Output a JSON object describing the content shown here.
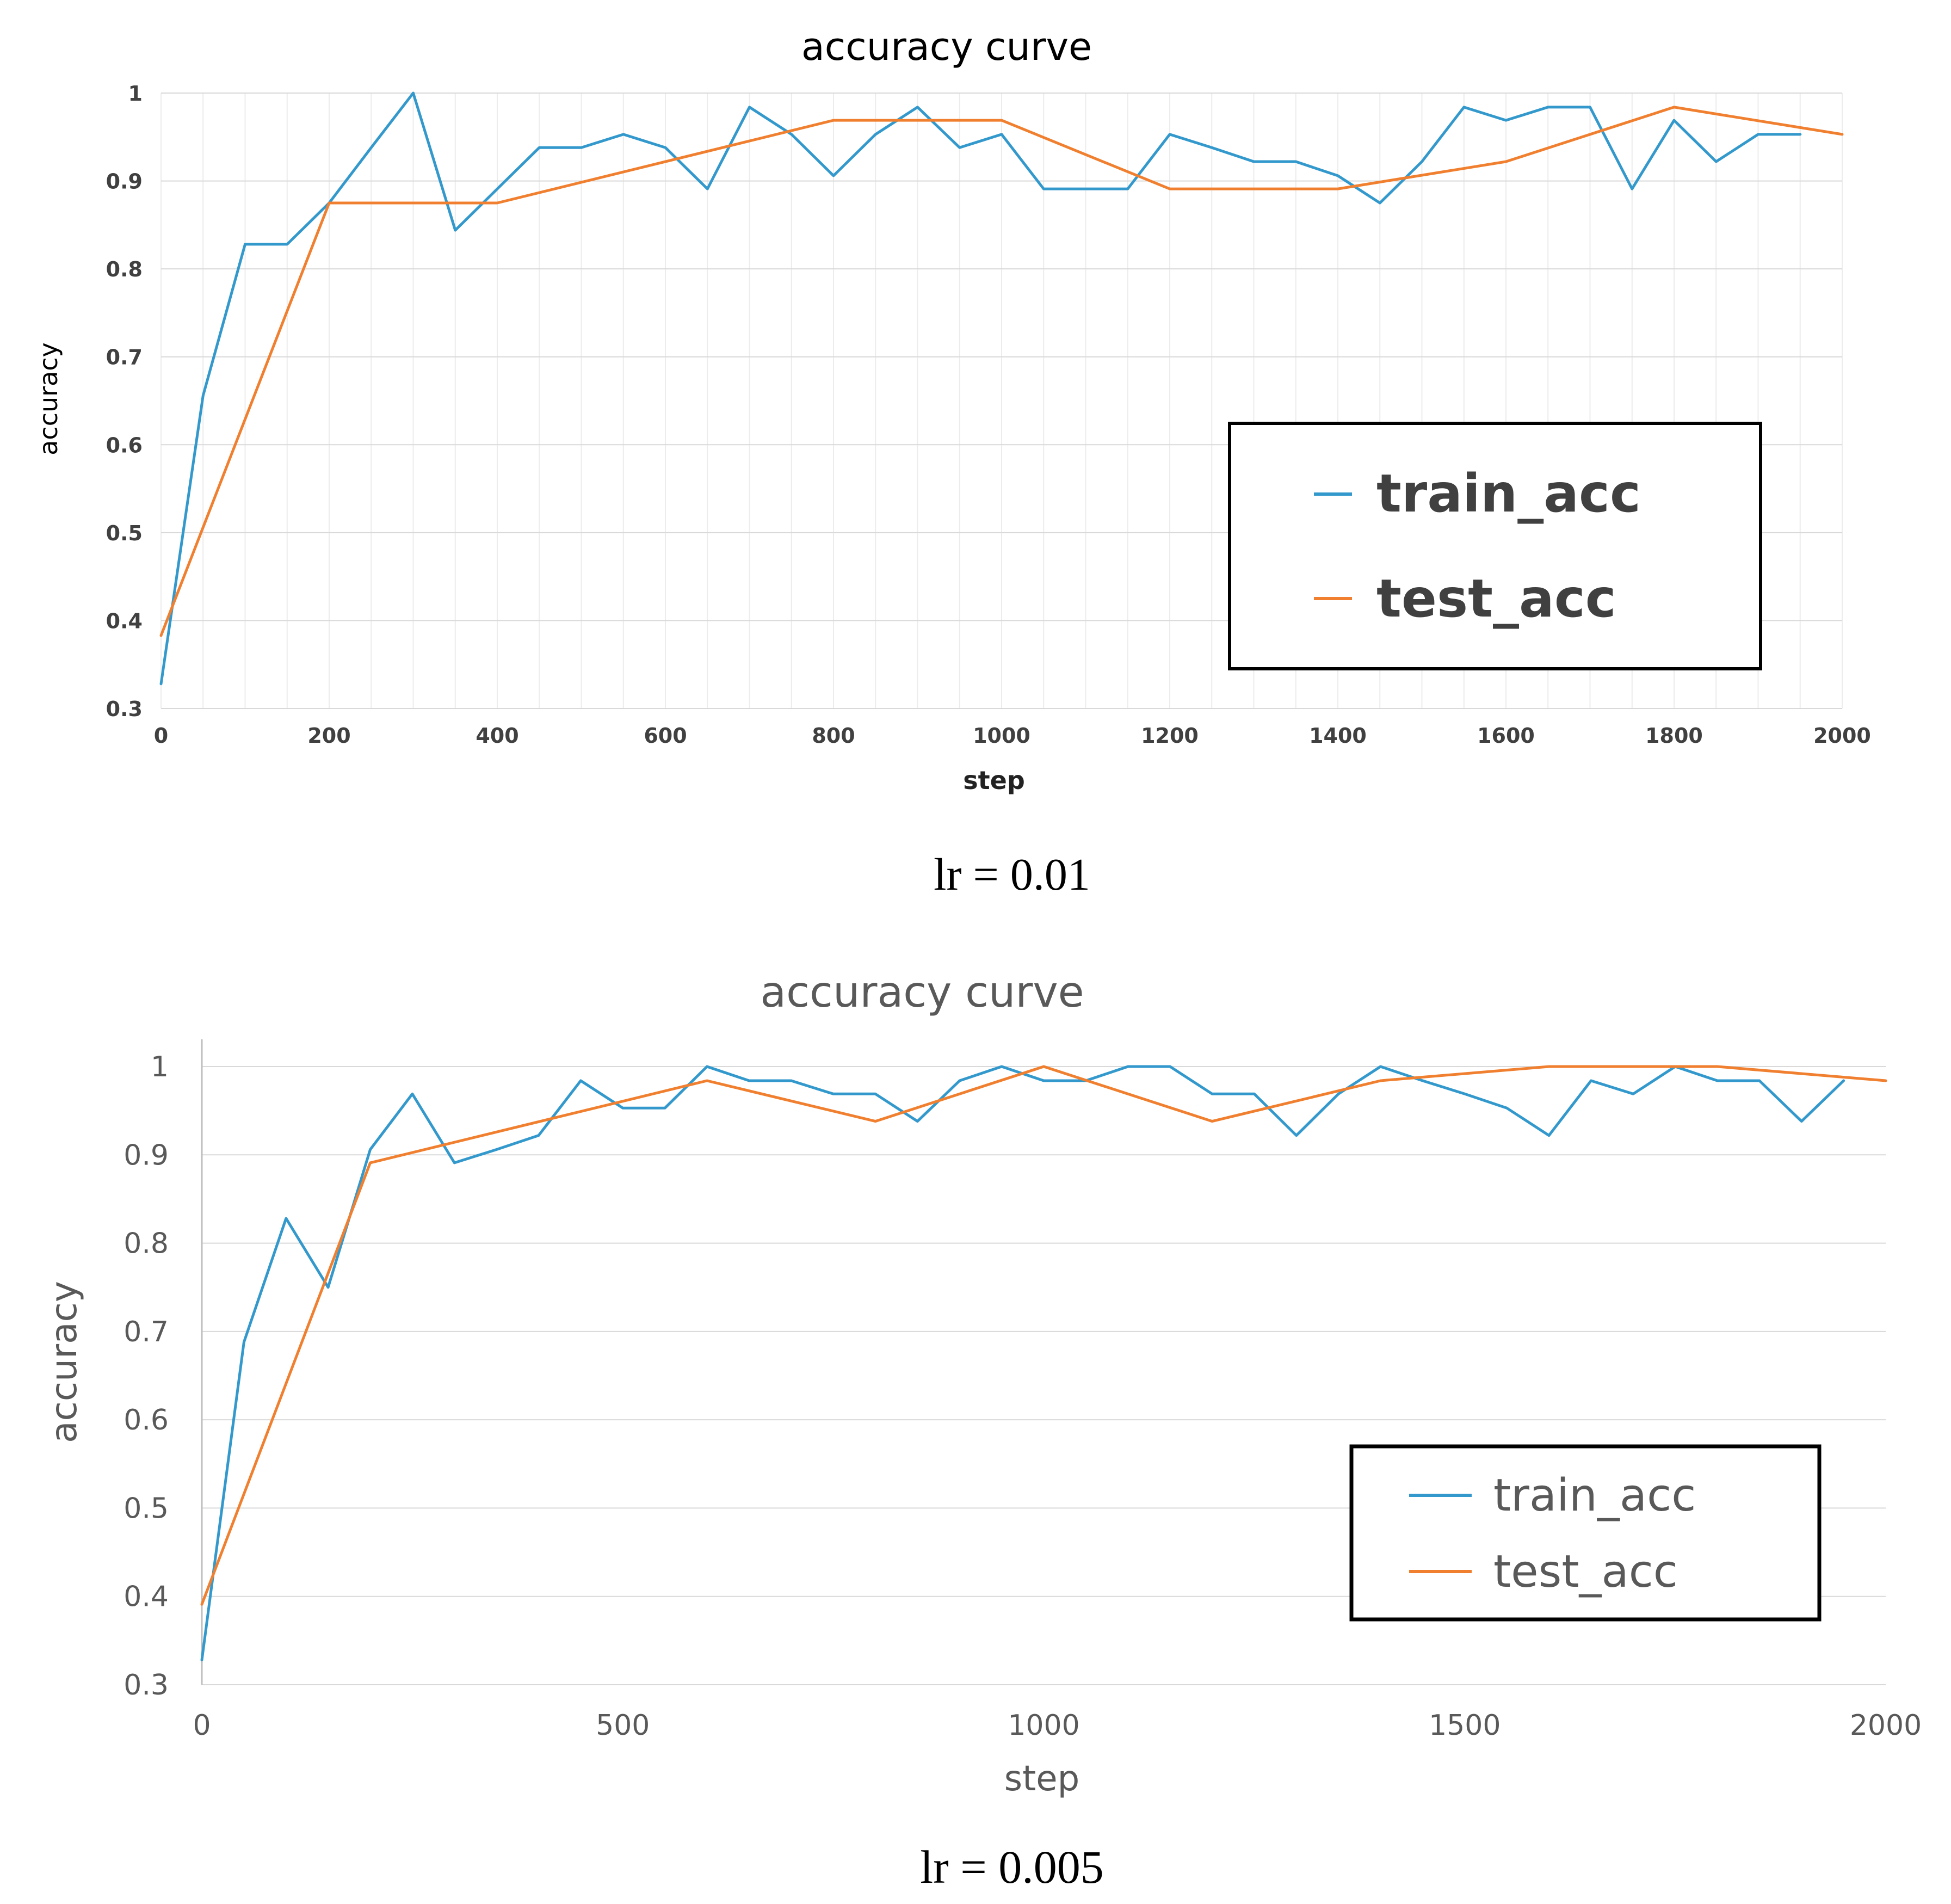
{
  "chart_data": [
    {
      "type": "line",
      "title": "accuracy curve",
      "xlabel": "step",
      "ylabel": "accuracy",
      "caption": "lr = 0.01",
      "xlim": [
        0,
        2000
      ],
      "ylim": [
        0.3,
        1
      ],
      "xticks": [
        0,
        200,
        400,
        600,
        800,
        1000,
        1200,
        1400,
        1600,
        1800,
        2000
      ],
      "yticks": [
        0.3,
        0.4,
        0.5,
        0.6,
        0.7,
        0.8,
        0.9,
        1
      ],
      "xtick_labels": [
        "0",
        "200",
        "400",
        "600",
        "800",
        "1000",
        "1200",
        "1400",
        "1600",
        "1800",
        "2000"
      ],
      "ytick_labels": [
        "0.3",
        "0.4",
        "0.5",
        "0.6",
        "0.7",
        "0.8",
        "0.9",
        "1"
      ],
      "grid": true,
      "legend_position": "center-right",
      "series": [
        {
          "name": "train_acc",
          "color": "#3399cc",
          "x": [
            0,
            50,
            100,
            150,
            200,
            250,
            300,
            350,
            400,
            450,
            500,
            550,
            600,
            650,
            700,
            750,
            800,
            850,
            900,
            950,
            1000,
            1050,
            1100,
            1150,
            1200,
            1250,
            1300,
            1350,
            1400,
            1450,
            1500,
            1550,
            1600,
            1650,
            1700,
            1750,
            1800,
            1850,
            1900,
            1950
          ],
          "y": [
            0.328,
            0.656,
            0.828,
            0.828,
            0.875,
            0.938,
            1.0,
            0.844,
            0.891,
            0.938,
            0.938,
            0.953,
            0.938,
            0.891,
            0.984,
            0.953,
            0.906,
            0.953,
            0.984,
            0.938,
            0.953,
            0.891,
            0.891,
            0.891,
            0.953,
            0.938,
            0.922,
            0.922,
            0.906,
            0.875,
            0.922,
            0.984,
            0.969,
            0.984,
            0.984,
            0.891,
            0.969,
            0.922,
            0.953,
            0.953
          ]
        },
        {
          "name": "test_acc",
          "color": "#f08030",
          "x": [
            0,
            200,
            400,
            800,
            1000,
            1200,
            1400,
            1600,
            1800,
            2000
          ],
          "y": [
            0.383,
            0.875,
            0.875,
            0.969,
            0.969,
            0.891,
            0.891,
            0.922,
            0.984,
            0.953
          ]
        }
      ]
    },
    {
      "type": "line",
      "title": "accuracy curve",
      "xlabel": "step",
      "ylabel": "accuracy",
      "caption": "lr = 0.005",
      "xlim": [
        0,
        2000
      ],
      "ylim": [
        0.3,
        1
      ],
      "xticks": [
        0,
        500,
        1000,
        1500,
        2000
      ],
      "yticks": [
        0.3,
        0.4,
        0.5,
        0.6,
        0.7,
        0.8,
        0.9,
        1
      ],
      "xtick_labels": [
        "0",
        "500",
        "1000",
        "1500",
        "2000"
      ],
      "ytick_labels": [
        "0.3",
        "0.4",
        "0.5",
        "0.6",
        "0.7",
        "0.8",
        "0.9",
        "1"
      ],
      "grid": true,
      "legend_position": "bottom-right",
      "series": [
        {
          "name": "train_acc",
          "color": "#3399cc",
          "x": [
            0,
            50,
            100,
            150,
            200,
            250,
            300,
            350,
            400,
            450,
            500,
            550,
            600,
            650,
            700,
            750,
            800,
            850,
            900,
            950,
            1000,
            1050,
            1100,
            1150,
            1200,
            1250,
            1300,
            1350,
            1400,
            1450,
            1500,
            1550,
            1600,
            1650,
            1700,
            1750,
            1800,
            1850,
            1900,
            1950
          ],
          "y": [
            0.328,
            0.688,
            0.828,
            0.75,
            0.906,
            0.969,
            0.891,
            0.906,
            0.922,
            0.984,
            0.953,
            0.953,
            1.0,
            0.984,
            0.984,
            0.969,
            0.969,
            0.938,
            0.984,
            1.0,
            0.984,
            0.984,
            1.0,
            1.0,
            0.969,
            0.969,
            0.922,
            0.969,
            1.0,
            0.984,
            0.969,
            0.953,
            0.922,
            0.984,
            0.969,
            1.0,
            0.984,
            0.984,
            0.938,
            0.984
          ]
        },
        {
          "name": "test_acc",
          "color": "#f08030",
          "x": [
            0,
            200,
            600,
            800,
            1000,
            1200,
            1400,
            1600,
            1800,
            2000
          ],
          "y": [
            0.391,
            0.891,
            0.984,
            0.938,
            1.0,
            0.938,
            0.984,
            1.0,
            1.0,
            0.984
          ]
        }
      ]
    }
  ]
}
